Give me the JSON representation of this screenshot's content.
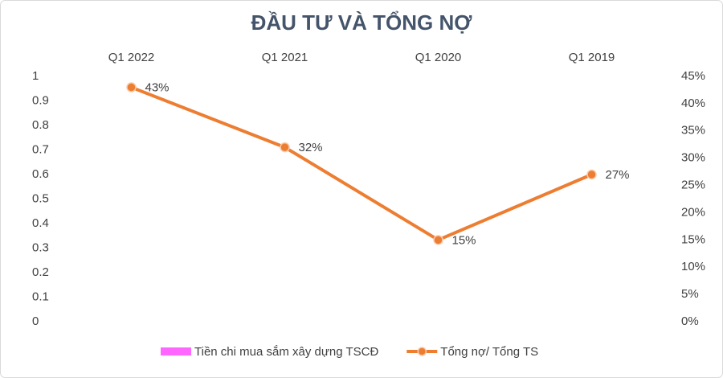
{
  "chart_data": {
    "type": "combo",
    "title": "ĐẦU TƯ VÀ TỔNG NỢ",
    "categories": [
      "Q1 2022",
      "Q1 2021",
      "Q1 2020",
      "Q1 2019"
    ],
    "series": [
      {
        "name": "Tiền chi mua sắm xây dựng TSCĐ",
        "type": "bar",
        "color": "#ff66ff",
        "values": [
          null,
          null,
          null,
          null
        ]
      },
      {
        "name": "Tổng nợ/ Tổng TS",
        "type": "line",
        "axis": "y2",
        "color": "#ed7d31",
        "values": [
          43,
          32,
          15,
          27
        ],
        "value_labels": [
          "43%",
          "32%",
          "15%",
          "27%"
        ]
      }
    ],
    "ylim": [
      0,
      1
    ],
    "yticks": [
      0,
      0.1,
      0.2,
      0.3,
      0.4,
      0.5,
      0.6,
      0.7,
      0.8,
      0.9,
      1
    ],
    "y2lim": [
      0,
      45
    ],
    "y2ticks": [
      {
        "value": 0,
        "label": "0%"
      },
      {
        "value": 5,
        "label": "5%"
      },
      {
        "value": 10,
        "label": "10%"
      },
      {
        "value": 15,
        "label": "15%"
      },
      {
        "value": 20,
        "label": "20%"
      },
      {
        "value": 25,
        "label": "25%"
      },
      {
        "value": 30,
        "label": "30%"
      },
      {
        "value": 35,
        "label": "35%"
      },
      {
        "value": 40,
        "label": "40%"
      },
      {
        "value": 45,
        "label": "45%"
      }
    ],
    "x_axis_position": "top",
    "grid": false,
    "legend": "bottom"
  }
}
